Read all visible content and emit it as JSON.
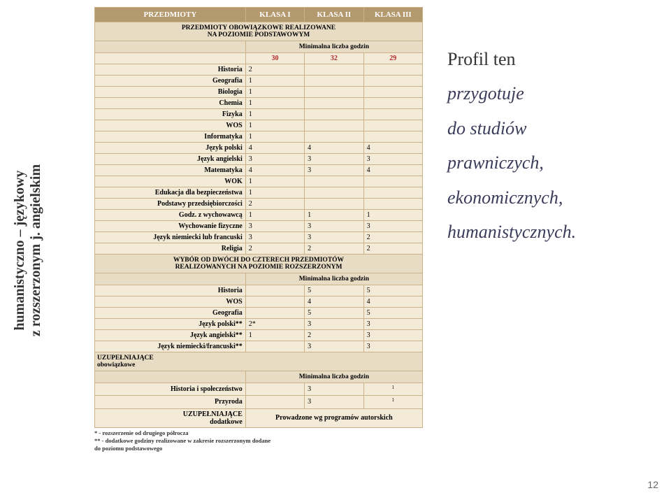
{
  "vertical_label": {
    "line1": "humanistyczno – językowy",
    "line2": "z rozszerzonym j. angielskim"
  },
  "header": {
    "c0": "PRZEDMIOTY",
    "c1": "KLASA I",
    "c2": "KLASA II",
    "c3": "KLASA III"
  },
  "section1_title": "PRZEDMIOTY OBOWIĄZKOWE REALIZOWANE\nNA POZIOMIE PODSTAWOWYM",
  "min_hours_label": "Minimalna liczba godzin",
  "min_hours_1": {
    "a": "30",
    "b": "32",
    "c": "29"
  },
  "rows1": [
    {
      "lbl": "Historia",
      "a": "2",
      "b": "",
      "c": ""
    },
    {
      "lbl": "Geografia",
      "a": "1",
      "b": "",
      "c": ""
    },
    {
      "lbl": "Biologia",
      "a": "1",
      "b": "",
      "c": ""
    },
    {
      "lbl": "Chemia",
      "a": "1",
      "b": "",
      "c": ""
    },
    {
      "lbl": "Fizyka",
      "a": "1",
      "b": "",
      "c": ""
    },
    {
      "lbl": "WOS",
      "a": "1",
      "b": "",
      "c": ""
    },
    {
      "lbl": "Informatyka",
      "a": "1",
      "b": "",
      "c": ""
    },
    {
      "lbl": "Język polski",
      "a": "4",
      "b": "4",
      "c": "4"
    },
    {
      "lbl": "Język angielski",
      "a": "3",
      "b": "3",
      "c": "3"
    },
    {
      "lbl": "Matematyka",
      "a": "4",
      "b": "3",
      "c": "4"
    },
    {
      "lbl": "WOK",
      "a": "1",
      "b": "",
      "c": ""
    },
    {
      "lbl": "Edukacja dla bezpieczeństwa",
      "a": "1",
      "b": "",
      "c": ""
    },
    {
      "lbl": "Podstawy przedsiębiorczości",
      "a": "2",
      "b": "",
      "c": ""
    },
    {
      "lbl": "Godz. z wychowawcą",
      "a": "1",
      "b": "1",
      "c": "1"
    },
    {
      "lbl": "Wychowanie fizyczne",
      "a": "3",
      "b": "3",
      "c": "3"
    },
    {
      "lbl": "Język niemiecki lub francuski",
      "a": "3",
      "b": "3",
      "c": "2"
    },
    {
      "lbl": "Religia",
      "a": "2",
      "b": "2",
      "c": "2"
    }
  ],
  "section2_title": "WYBÓR OD DWÓCH DO CZTERECH PRZEDMIOTÓW\nREALIZOWANYCH NA POZIOMIE ROZSZERZONYM",
  "rows2": [
    {
      "lbl": "Historia",
      "a": "",
      "b": "5",
      "c": "5"
    },
    {
      "lbl": "WOS",
      "a": "",
      "b": "4",
      "c": "4"
    },
    {
      "lbl": "Geografia",
      "a": "",
      "b": "5",
      "c": "5"
    },
    {
      "lbl": "Język polski**",
      "a": "2*",
      "b": "3",
      "c": "3"
    },
    {
      "lbl": "Język angielski**",
      "a": "1",
      "b": "2",
      "c": "3"
    },
    {
      "lbl": "Język niemiecki/francuski**",
      "a": "",
      "b": "3",
      "c": "3"
    }
  ],
  "section3_title": "UZUPEŁNIAJĄCE\nobowiązkowe",
  "rows3": [
    {
      "lbl": "Historia i społeczeństwo",
      "a": "",
      "b": "3",
      "c": "1",
      "csup": true
    },
    {
      "lbl": "Przyroda",
      "a": "",
      "b": "3",
      "c": "1",
      "csup": true
    }
  ],
  "section4_lbl": "UZUPEŁNIAJĄCE\ndodatkowe",
  "section4_val": "Prowadzone wg programów autorskich",
  "footnotes": {
    "f1": "* - rozszerzenie od drugiego półrocza",
    "f2": "** - dodatkowe godziny realizowane w zakresie rozszerzonym dodane\ndo poziomu podstawowego"
  },
  "right": {
    "l1": "Profil ten",
    "l2": "przygotuje",
    "l3": "do studiów",
    "l4": "prawniczych,",
    "l5": "ekonomicznych,",
    "l6": "humanistycznych."
  },
  "page_number": "12",
  "colors": {
    "header_bg": "#b4996e",
    "sub_bg": "#e8dcc5",
    "row_bg": "#f3ead7",
    "right_text": "#3b3b5a"
  }
}
